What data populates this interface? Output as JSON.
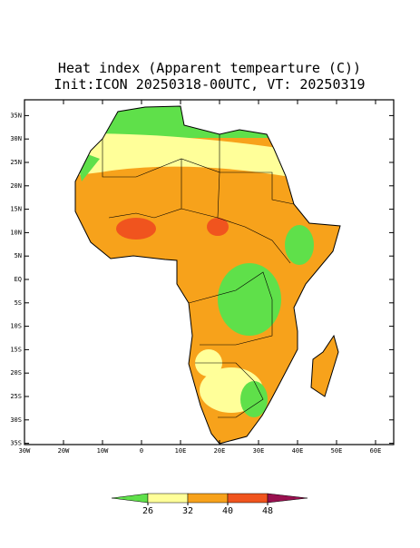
{
  "title": "Heat index (Apparent tempearture (C))",
  "subtitle": "Init:ICON 20250318-00UTC, VT: 20250319",
  "map": {
    "lat_ticks": [
      {
        "value": 35,
        "label": "35N"
      },
      {
        "value": 30,
        "label": "30N"
      },
      {
        "value": 25,
        "label": "25N"
      },
      {
        "value": 20,
        "label": "20N"
      },
      {
        "value": 15,
        "label": "15N"
      },
      {
        "value": 10,
        "label": "10N"
      },
      {
        "value": 5,
        "label": "5N"
      },
      {
        "value": 0,
        "label": "EQ"
      },
      {
        "value": -5,
        "label": "5S"
      },
      {
        "value": -10,
        "label": "10S"
      },
      {
        "value": -15,
        "label": "15S"
      },
      {
        "value": -20,
        "label": "20S"
      },
      {
        "value": -25,
        "label": "25S"
      },
      {
        "value": -30,
        "label": "30S"
      },
      {
        "value": -35,
        "label": "35S"
      }
    ],
    "lon_ticks": [
      {
        "value": -30,
        "label": "30W"
      },
      {
        "value": -20,
        "label": "20W"
      },
      {
        "value": -10,
        "label": "10W"
      },
      {
        "value": 0,
        "label": "0"
      },
      {
        "value": 10,
        "label": "10E"
      },
      {
        "value": 20,
        "label": "20E"
      },
      {
        "value": 30,
        "label": "30E"
      },
      {
        "value": 40,
        "label": "40E"
      },
      {
        "value": 50,
        "label": "50E"
      },
      {
        "value": 60,
        "label": "60E"
      }
    ]
  },
  "colorbar": {
    "levels": [
      26,
      32,
      40,
      48
    ],
    "colors": [
      "#5fe04a",
      "#ffff99",
      "#f7a21b",
      "#f0541e",
      "#99104f"
    ]
  }
}
